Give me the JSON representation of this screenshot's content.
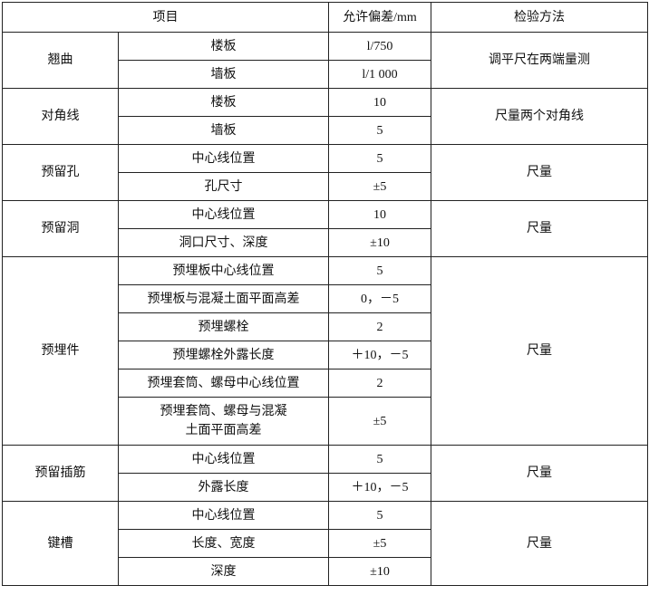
{
  "header": {
    "item": "项目",
    "tolerance": "允许偏差/mm",
    "method": "检验方法"
  },
  "groups": [
    {
      "name": "翘曲",
      "method": "调平尺在两端量测",
      "rows": [
        {
          "item": "楼板",
          "tolerance": "l/750"
        },
        {
          "item": "墙板",
          "tolerance": "l/1 000"
        }
      ]
    },
    {
      "name": "对角线",
      "method": "尺量两个对角线",
      "rows": [
        {
          "item": "楼板",
          "tolerance": "10"
        },
        {
          "item": "墙板",
          "tolerance": "5"
        }
      ]
    },
    {
      "name": "预留孔",
      "method": "尺量",
      "rows": [
        {
          "item": "中心线位置",
          "tolerance": "5"
        },
        {
          "item": "孔尺寸",
          "tolerance": "±5"
        }
      ]
    },
    {
      "name": "预留洞",
      "method": "尺量",
      "rows": [
        {
          "item": "中心线位置",
          "tolerance": "10"
        },
        {
          "item": "洞口尺寸、深度",
          "tolerance": "±10"
        }
      ]
    },
    {
      "name": "预埋件",
      "method": "尺量",
      "rows": [
        {
          "item": "预埋板中心线位置",
          "tolerance": "5"
        },
        {
          "item": "预埋板与混凝土面平面高差",
          "tolerance": "0，－5"
        },
        {
          "item": "预埋螺栓",
          "tolerance": "2"
        },
        {
          "item": "预埋螺栓外露长度",
          "tolerance": "＋10，－5"
        },
        {
          "item": "预埋套筒、螺母中心线位置",
          "tolerance": "2"
        },
        {
          "item": "预埋套筒、螺母与混凝土面平面高差",
          "tolerance": "±5"
        }
      ]
    },
    {
      "name": "预留插筋",
      "method": "尺量",
      "rows": [
        {
          "item": "中心线位置",
          "tolerance": "5"
        },
        {
          "item": "外露长度",
          "tolerance": "＋10，－5"
        }
      ]
    },
    {
      "name": "键槽",
      "method": "尺量",
      "rows": [
        {
          "item": "中心线位置",
          "tolerance": "5"
        },
        {
          "item": "长度、宽度",
          "tolerance": "±5"
        },
        {
          "item": "深度",
          "tolerance": "±10"
        }
      ]
    }
  ]
}
